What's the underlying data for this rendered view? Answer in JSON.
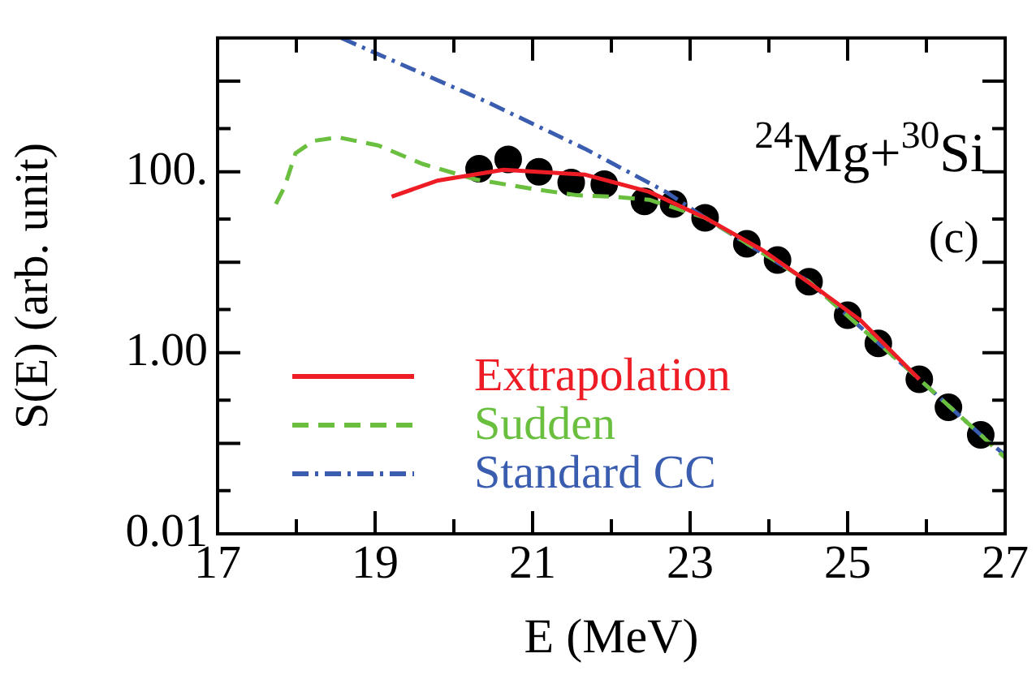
{
  "chart_data": {
    "type": "line",
    "xlabel": "E (MeV)",
    "ylabel": "S(E) (arb. unit)",
    "log": "y",
    "xlim": [
      17,
      27
    ],
    "xticks": [
      17,
      {
        "value": 18,
        "label": null
      },
      19,
      {
        "value": 20,
        "label": null
      },
      21,
      {
        "value": 22,
        "label": null
      },
      23,
      {
        "value": 24,
        "label": null
      },
      25,
      {
        "value": 26,
        "label": null
      },
      27
    ],
    "ylim": [
      0.01,
      3000
    ],
    "yticks": [
      {
        "value": 0.01,
        "label": "0.01"
      },
      {
        "value": 0.1,
        "label": null
      },
      {
        "value": 1,
        "label": "1.00"
      },
      {
        "value": 10,
        "label": null
      },
      {
        "value": 100,
        "label": "100."
      },
      {
        "value": 1000,
        "label": null
      }
    ],
    "grid": false,
    "legend": "bottom left",
    "annotations": [
      "$^{24}$Mg+$^{30}$Si",
      "(c)"
    ],
    "series": [
      {
        "type": "scatter",
        "marker": "circle",
        "color": "#000000",
        "x": [
          20.32,
          20.69,
          21.08,
          21.49,
          21.91,
          22.42,
          22.79,
          23.19,
          23.72,
          24.11,
          24.51,
          25.0,
          25.39,
          25.91,
          26.28,
          26.69
        ],
        "values": [
          108,
          137,
          100,
          76,
          73,
          47,
          44,
          31,
          16,
          10.6,
          6.1,
          2.6,
          1.27,
          0.51,
          0.25,
          0.124
        ]
      },
      {
        "name": "Extrapolation",
        "line_style": "solid",
        "marker": "none",
        "color": "#ee1c25",
        "x": [
          19.21,
          19.8,
          20.63,
          21.66,
          22.48,
          23.19,
          23.93,
          24.55,
          25.16,
          25.91
        ],
        "values": [
          53,
          80,
          105,
          93,
          60,
          31,
          13.4,
          5.6,
          2.3,
          0.51
        ]
      },
      {
        "name": "Sudden",
        "line_style": "dashed",
        "marker": "none",
        "color": "#6abf3f",
        "x": [
          17.74,
          17.85,
          17.99,
          18.22,
          18.53,
          19.04,
          19.6,
          20.28,
          20.98,
          21.56,
          22.01,
          22.48,
          23.19,
          24.51,
          25.91,
          26.69,
          27
        ],
        "values": [
          44,
          68,
          160,
          219,
          240,
          195,
          122,
          82,
          65,
          55,
          53,
          49,
          31,
          6.1,
          0.51,
          0.124,
          0.069
        ]
      },
      {
        "name": "Standard CC",
        "line_style": "dashdot",
        "marker": "none",
        "color": "#3a5db0",
        "x": [
          18.57,
          20.42,
          21.66,
          22.69,
          23.19,
          23.72,
          24.51,
          25.91,
          26.69,
          27
        ],
        "values": [
          3000,
          590,
          180,
          60,
          31,
          16,
          6.1,
          0.51,
          0.124,
          0.074
        ]
      }
    ]
  }
}
